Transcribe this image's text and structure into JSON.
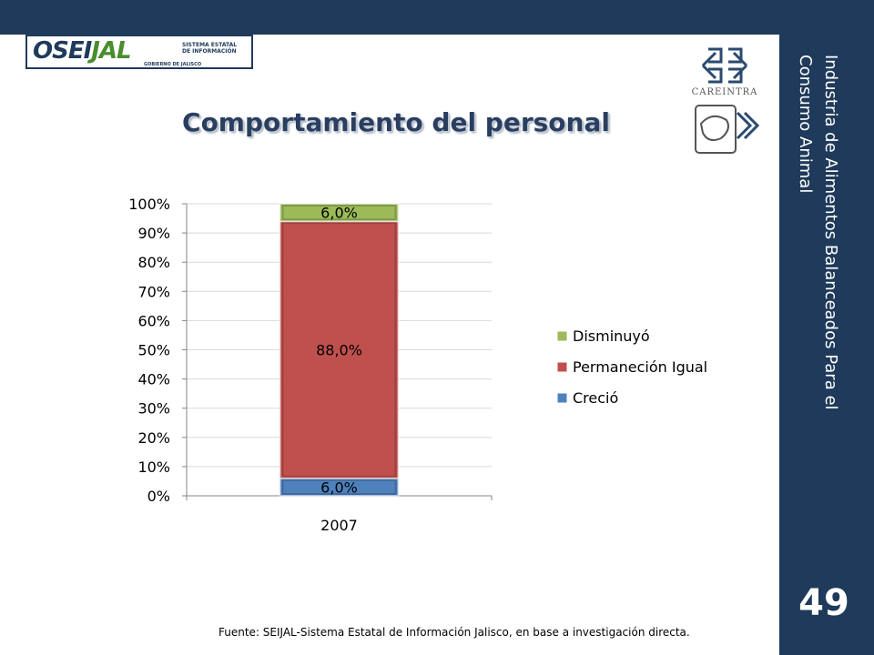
{
  "header": {
    "logo_text_main": "OSEI",
    "logo_text_accent": "JAL",
    "logo_subtitle_line1": "SISTEMA ESTATAL",
    "logo_subtitle_line2": "DE INFORMACIÓN",
    "logo_government": "GOBIERNO DE JALISCO",
    "partner_logo_label": "CAREINTRA"
  },
  "sidebar": {
    "title": "Industria de Alimentos Balanceados Para el Consumo Animal",
    "page_number": "49"
  },
  "slide": {
    "title": "Comportamiento del personal",
    "source": "Fuente: SEIJAL-Sistema Estatal de Información Jalisco, en base a investigación directa."
  },
  "colors": {
    "dark_blue": "#1f3a5a",
    "series_crecio": "#4f81bd",
    "series_permanecio": "#c0504d",
    "series_disminuyo": "#9bbb59"
  },
  "chart_data": {
    "type": "bar",
    "stacked": "percent",
    "title": "",
    "xlabel": "",
    "ylabel": "",
    "categories": [
      "2007"
    ],
    "ylim": [
      0,
      100
    ],
    "ytick_labels": [
      "0%",
      "10%",
      "20%",
      "30%",
      "40%",
      "50%",
      "60%",
      "70%",
      "80%",
      "90%",
      "100%"
    ],
    "grid": true,
    "legend_position": "right",
    "series": [
      {
        "name": "Creció",
        "values": [
          6.0
        ],
        "labels": [
          "6,0%"
        ],
        "color": "#4f81bd"
      },
      {
        "name": "Permaneción Igual",
        "values": [
          88.0
        ],
        "labels": [
          "88,0%"
        ],
        "color": "#c0504d"
      },
      {
        "name": "Disminuyó",
        "values": [
          6.0
        ],
        "labels": [
          "6,0%"
        ],
        "color": "#9bbb59"
      }
    ],
    "legend_order": [
      "Disminuyó",
      "Permaneción Igual",
      "Creció"
    ]
  }
}
